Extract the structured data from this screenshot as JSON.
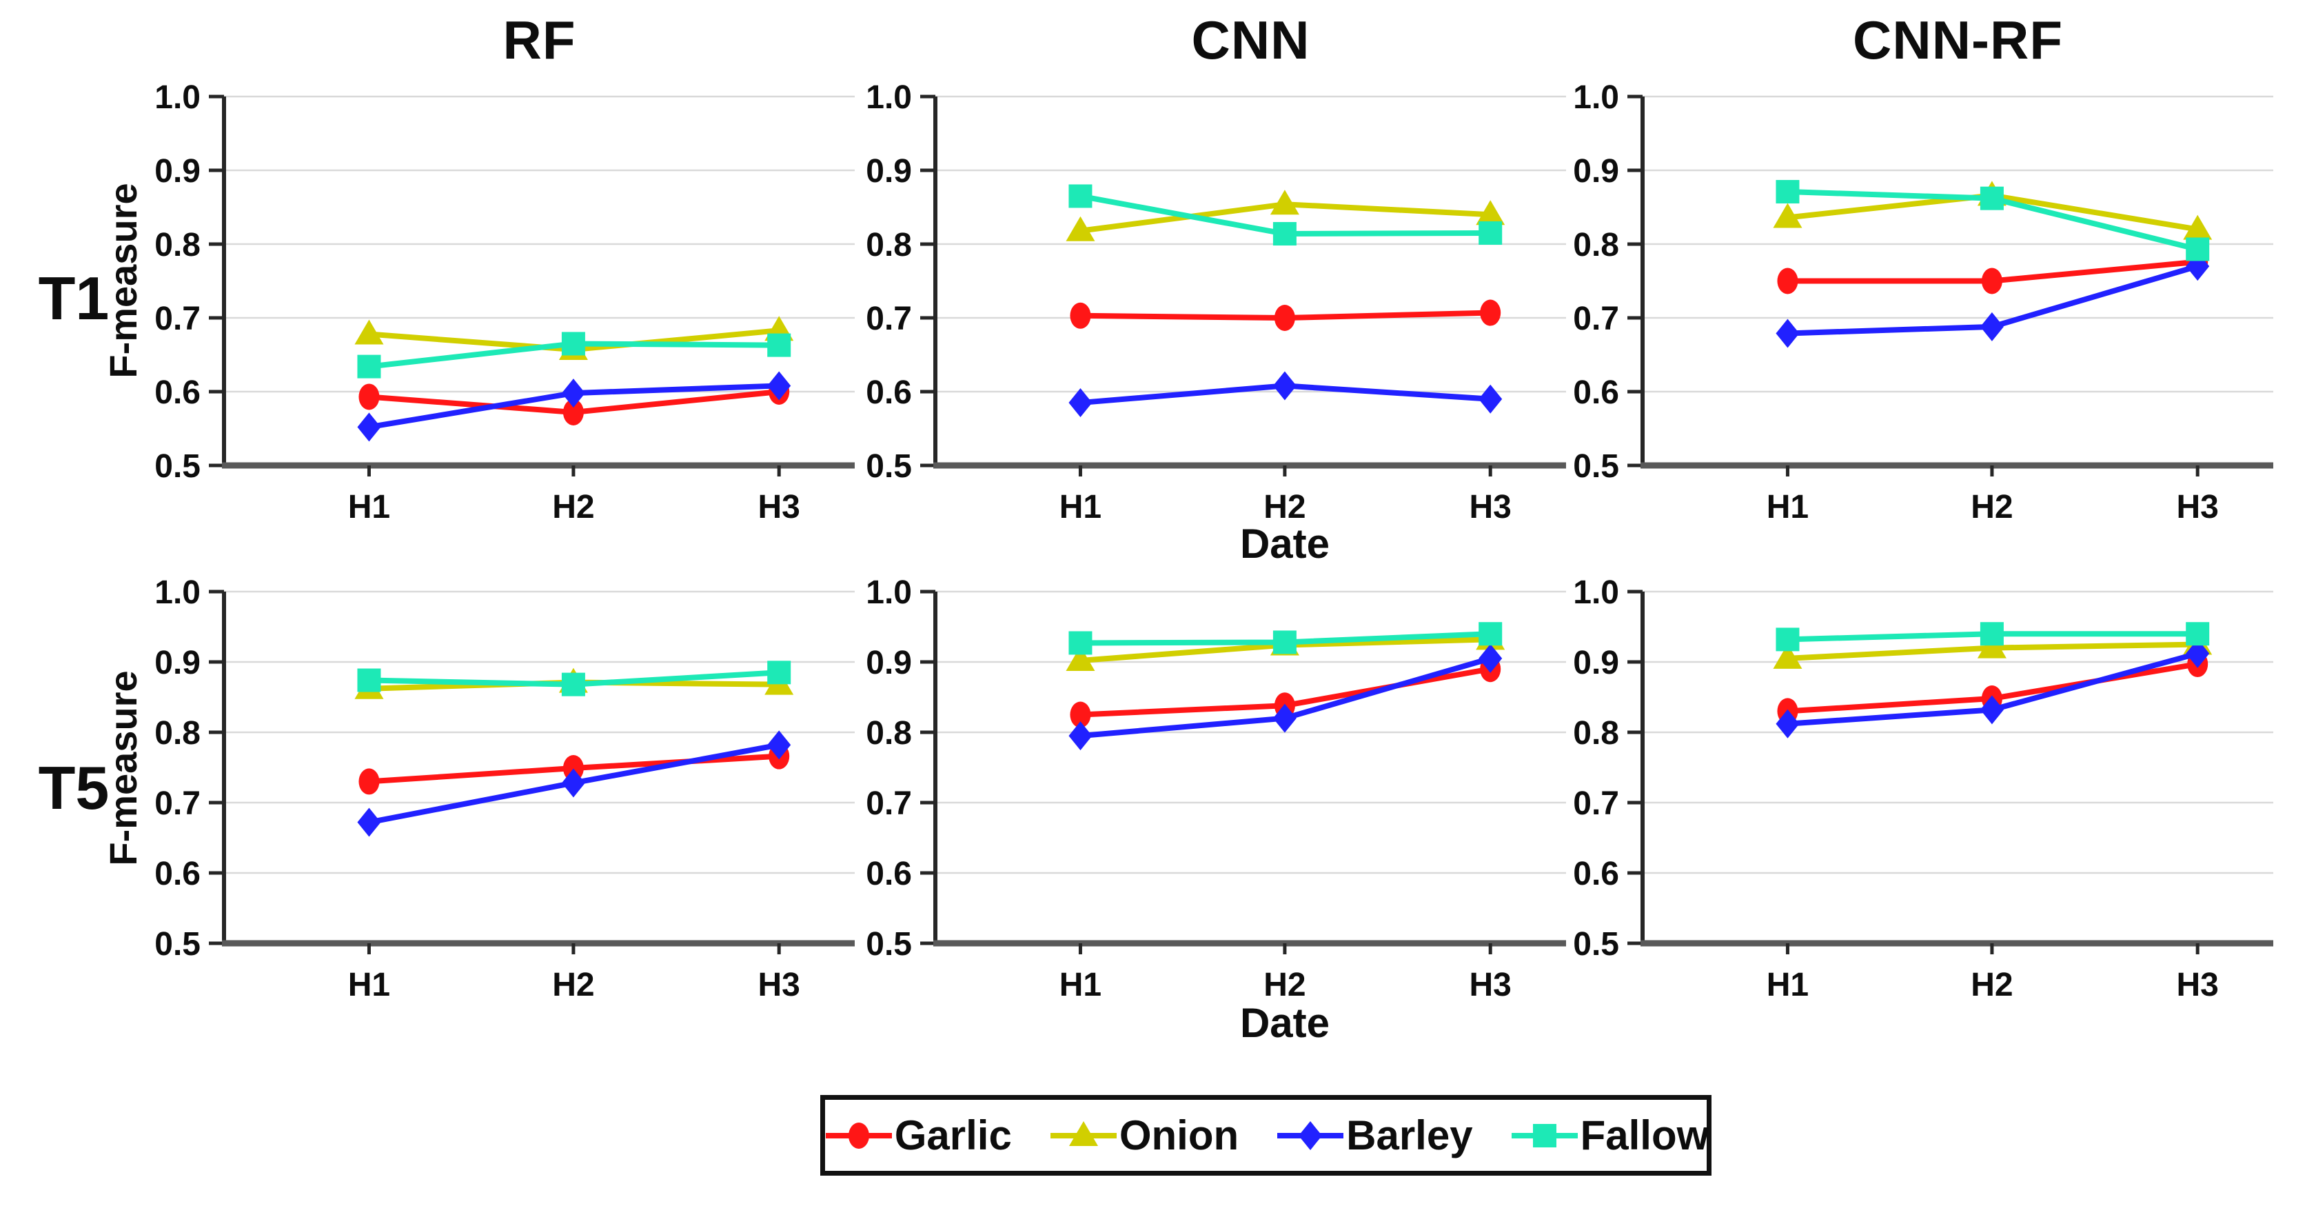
{
  "figure": {
    "y_axis_label": "F-measure",
    "x_axis_label": "Date",
    "y_ticks": [
      "1.0",
      "0.9",
      "0.8",
      "0.7",
      "0.6",
      "0.5"
    ],
    "x_categories": [
      "H1",
      "H2",
      "H3"
    ],
    "rows": [
      {
        "label": "T1"
      },
      {
        "label": "T5"
      }
    ],
    "columns": [
      {
        "title": "RF"
      },
      {
        "title": "CNN"
      },
      {
        "title": "CNN-RF"
      }
    ],
    "series_meta": [
      {
        "name": "Garlic",
        "color": "#ff1616",
        "marker": "circle"
      },
      {
        "name": "Onion",
        "color": "#d1cf00",
        "marker": "triangle"
      },
      {
        "name": "Barley",
        "color": "#2121ff",
        "marker": "diamond"
      },
      {
        "name": "Fallow",
        "color": "#1de9b6",
        "marker": "square"
      }
    ],
    "colors": {
      "gridline": "#d9d9d9",
      "y_axis": "#262626",
      "x_axis": "#595959",
      "text": "#0d0d0d"
    }
  },
  "chart_data": [
    {
      "type": "line",
      "row_label": "T1",
      "column_title": "RF",
      "categories": [
        "H1",
        "H2",
        "H3"
      ],
      "ylim": [
        0.5,
        1.0
      ],
      "ylabel": "F-measure",
      "series": [
        {
          "name": "Garlic",
          "values": [
            0.593,
            0.572,
            0.6
          ]
        },
        {
          "name": "Onion",
          "values": [
            0.678,
            0.657,
            0.683
          ]
        },
        {
          "name": "Barley",
          "values": [
            0.552,
            0.598,
            0.608
          ]
        },
        {
          "name": "Fallow",
          "values": [
            0.634,
            0.665,
            0.663
          ]
        }
      ]
    },
    {
      "type": "line",
      "row_label": "T1",
      "column_title": "CNN",
      "categories": [
        "H1",
        "H2",
        "H3"
      ],
      "ylim": [
        0.5,
        1.0
      ],
      "ylabel": "F-measure",
      "series": [
        {
          "name": "Garlic",
          "values": [
            0.703,
            0.7,
            0.707
          ]
        },
        {
          "name": "Onion",
          "values": [
            0.818,
            0.854,
            0.84
          ]
        },
        {
          "name": "Barley",
          "values": [
            0.585,
            0.608,
            0.59
          ]
        },
        {
          "name": "Fallow",
          "values": [
            0.865,
            0.814,
            0.815
          ]
        }
      ]
    },
    {
      "type": "line",
      "row_label": "T1",
      "column_title": "CNN-RF",
      "categories": [
        "H1",
        "H2",
        "H3"
      ],
      "ylim": [
        0.5,
        1.0
      ],
      "ylabel": "F-measure",
      "series": [
        {
          "name": "Garlic",
          "values": [
            0.75,
            0.75,
            0.776
          ]
        },
        {
          "name": "Onion",
          "values": [
            0.836,
            0.866,
            0.82
          ]
        },
        {
          "name": "Barley",
          "values": [
            0.679,
            0.688,
            0.77
          ]
        },
        {
          "name": "Fallow",
          "values": [
            0.871,
            0.862,
            0.793
          ]
        }
      ]
    },
    {
      "type": "line",
      "row_label": "T5",
      "column_title": "RF",
      "categories": [
        "H1",
        "H2",
        "H3"
      ],
      "ylim": [
        0.5,
        1.0
      ],
      "ylabel": "F-measure",
      "series": [
        {
          "name": "Garlic",
          "values": [
            0.73,
            0.749,
            0.766
          ]
        },
        {
          "name": "Onion",
          "values": [
            0.862,
            0.871,
            0.868
          ]
        },
        {
          "name": "Barley",
          "values": [
            0.672,
            0.728,
            0.782
          ]
        },
        {
          "name": "Fallow",
          "values": [
            0.874,
            0.868,
            0.885
          ]
        }
      ]
    },
    {
      "type": "line",
      "row_label": "T5",
      "column_title": "CNN",
      "categories": [
        "H1",
        "H2",
        "H3"
      ],
      "ylim": [
        0.5,
        1.0
      ],
      "ylabel": "F-measure",
      "series": [
        {
          "name": "Garlic",
          "values": [
            0.825,
            0.838,
            0.89
          ]
        },
        {
          "name": "Onion",
          "values": [
            0.902,
            0.924,
            0.932
          ]
        },
        {
          "name": "Barley",
          "values": [
            0.795,
            0.82,
            0.905
          ]
        },
        {
          "name": "Fallow",
          "values": [
            0.927,
            0.928,
            0.94
          ]
        }
      ]
    },
    {
      "type": "line",
      "row_label": "T5",
      "column_title": "CNN-RF",
      "categories": [
        "H1",
        "H2",
        "H3"
      ],
      "ylim": [
        0.5,
        1.0
      ],
      "ylabel": "F-measure",
      "series": [
        {
          "name": "Garlic",
          "values": [
            0.83,
            0.848,
            0.897
          ]
        },
        {
          "name": "Onion",
          "values": [
            0.905,
            0.92,
            0.925
          ]
        },
        {
          "name": "Barley",
          "values": [
            0.812,
            0.832,
            0.912
          ]
        },
        {
          "name": "Fallow",
          "values": [
            0.932,
            0.94,
            0.94
          ]
        }
      ]
    }
  ]
}
